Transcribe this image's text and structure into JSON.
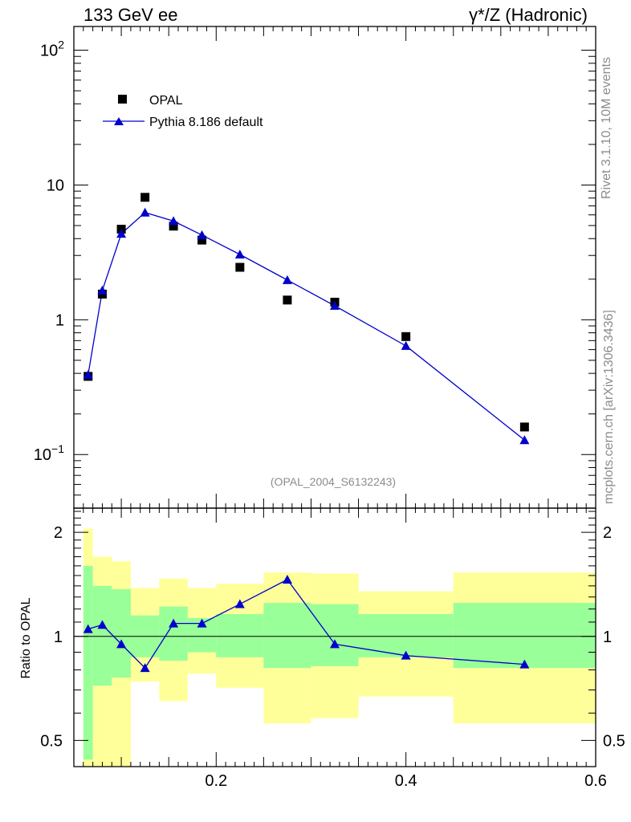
{
  "header": {
    "left_title": "133 GeV ee",
    "right_title": "γ*/Z (Hadronic)"
  },
  "side_labels": {
    "rivet": "Rivet 3.1.10,  10M events",
    "mcplots": "mcplots.cern.ch [arXiv:1306.3436]"
  },
  "analysis_tag": "(OPAL_2004_S6132243)",
  "colors": {
    "data_marker": "#000000",
    "mc_line": "#0000cc",
    "band_outer": "#ffff99",
    "band_inner": "#99ff99",
    "side_text": "#8c8c8c"
  },
  "chart_data": [
    {
      "type": "scatter",
      "panel": "main",
      "yscale": "log",
      "ylim": [
        0.04,
        150
      ],
      "xlim": [
        0.05,
        0.6
      ],
      "y_tick_labels": [
        "10^2",
        "10",
        "1",
        "10^-1"
      ],
      "legend": {
        "placement": "top-left",
        "entries": [
          "OPAL",
          "Pythia 8.186 default"
        ]
      },
      "series": [
        {
          "name": "OPAL",
          "marker": "square",
          "x": [
            0.065,
            0.08,
            0.1,
            0.125,
            0.155,
            0.185,
            0.225,
            0.275,
            0.325,
            0.4,
            0.525
          ],
          "y": [
            0.38,
            1.55,
            4.7,
            8.1,
            4.95,
            3.9,
            2.45,
            1.4,
            1.35,
            0.75,
            0.16
          ]
        },
        {
          "name": "Pythia 8.186 default",
          "marker": "triangle",
          "line": true,
          "x": [
            0.065,
            0.08,
            0.1,
            0.125,
            0.155,
            0.185,
            0.225,
            0.275,
            0.325,
            0.4,
            0.525
          ],
          "y": [
            0.39,
            1.65,
            4.35,
            6.25,
            5.4,
            4.25,
            3.05,
            1.97,
            1.27,
            0.64,
            0.128
          ]
        }
      ]
    },
    {
      "type": "line",
      "panel": "ratio",
      "ylabel": "Ratio to OPAL",
      "yscale": "log",
      "ylim": [
        0.42,
        2.35
      ],
      "xlim": [
        0.05,
        0.6
      ],
      "y_tick_labels": [
        "2",
        "1",
        "0.5"
      ],
      "x_tick_labels": [
        "0.2",
        "0.4",
        "0.6"
      ],
      "reference_line": 1,
      "bins": [
        {
          "lo": 0.06,
          "hi": 0.07,
          "outer": [
            0.35,
            2.05
          ],
          "inner": [
            0.44,
            1.6
          ]
        },
        {
          "lo": 0.07,
          "hi": 0.09,
          "outer": [
            0.33,
            1.7
          ],
          "inner": [
            0.72,
            1.4
          ]
        },
        {
          "lo": 0.09,
          "hi": 0.11,
          "outer": [
            0.37,
            1.65
          ],
          "inner": [
            0.76,
            1.37
          ]
        },
        {
          "lo": 0.11,
          "hi": 0.14,
          "outer": [
            0.74,
            1.38
          ],
          "inner": [
            0.87,
            1.15
          ]
        },
        {
          "lo": 0.14,
          "hi": 0.17,
          "outer": [
            0.65,
            1.47
          ],
          "inner": [
            0.85,
            1.22
          ]
        },
        {
          "lo": 0.17,
          "hi": 0.2,
          "outer": [
            0.78,
            1.38
          ],
          "inner": [
            0.9,
            1.13
          ]
        },
        {
          "lo": 0.2,
          "hi": 0.25,
          "outer": [
            0.71,
            1.42
          ],
          "inner": [
            0.87,
            1.16
          ]
        },
        {
          "lo": 0.25,
          "hi": 0.3,
          "outer": [
            0.56,
            1.53
          ],
          "inner": [
            0.81,
            1.25
          ]
        },
        {
          "lo": 0.3,
          "hi": 0.35,
          "outer": [
            0.58,
            1.52
          ],
          "inner": [
            0.82,
            1.24
          ]
        },
        {
          "lo": 0.35,
          "hi": 0.45,
          "outer": [
            0.67,
            1.35
          ],
          "inner": [
            0.87,
            1.16
          ]
        },
        {
          "lo": 0.45,
          "hi": 0.6,
          "outer": [
            0.56,
            1.53
          ],
          "inner": [
            0.81,
            1.25
          ]
        }
      ],
      "series": [
        {
          "name": "Pythia 8.186 default",
          "marker": "triangle",
          "x": [
            0.065,
            0.08,
            0.1,
            0.125,
            0.155,
            0.185,
            0.225,
            0.275,
            0.325,
            0.4,
            0.525
          ],
          "y": [
            1.05,
            1.08,
            0.95,
            0.81,
            1.09,
            1.09,
            1.24,
            1.46,
            0.95,
            0.88,
            0.83
          ]
        }
      ]
    }
  ]
}
